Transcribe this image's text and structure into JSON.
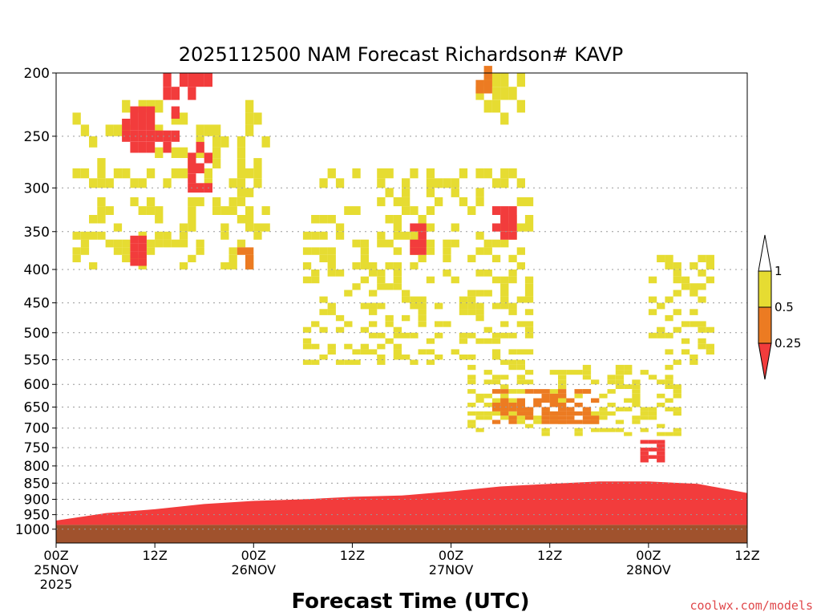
{
  "chart_data": {
    "type": "heatmap",
    "title": "2025112500 NAM Forecast Richardson# KAVP",
    "xlabel": "Forecast Time (UTC)",
    "ylabel": "",
    "x_axis": {
      "unit": "forecast hour",
      "range": [
        0,
        84
      ]
    },
    "y_axis": {
      "unit": "hPa",
      "range": [
        1050,
        200
      ],
      "inverted": true
    },
    "y_ticks": [
      200,
      250,
      300,
      350,
      400,
      450,
      500,
      550,
      600,
      650,
      700,
      750,
      800,
      850,
      900,
      950,
      1000
    ],
    "x_ticks": [
      {
        "hour": 0,
        "lines": [
          "00Z",
          "25NOV",
          "2025"
        ]
      },
      {
        "hour": 12,
        "lines": [
          "12Z"
        ]
      },
      {
        "hour": 24,
        "lines": [
          "00Z",
          "26NOV"
        ]
      },
      {
        "hour": 36,
        "lines": [
          "12Z"
        ]
      },
      {
        "hour": 48,
        "lines": [
          "00Z",
          "27NOV"
        ]
      },
      {
        "hour": 60,
        "lines": [
          "12Z"
        ]
      },
      {
        "hour": 72,
        "lines": [
          "00Z",
          "28NOV"
        ]
      },
      {
        "hour": 84,
        "lines": [
          "12Z"
        ]
      }
    ],
    "color_scale": {
      "thresholds": [
        0.25,
        0.5,
        1
      ],
      "bins": [
        {
          "label": "< 0.25",
          "color": "#f23c3c"
        },
        {
          "label": "0.25 - 0.5",
          "color": "#ec7b22"
        },
        {
          "label": "0.5 - 1",
          "color": "#e6dc32"
        },
        {
          "label": "> 1",
          "color": "#ffffff"
        }
      ],
      "legend_labels": [
        "1",
        "0.5",
        "0.25"
      ]
    },
    "ground_color": "#a0522d",
    "surface_pressure_hPa": 985,
    "boundary_layer_top_hPa": [
      {
        "hour": 0,
        "p": 970
      },
      {
        "hour": 6,
        "p": 945
      },
      {
        "hour": 12,
        "p": 932
      },
      {
        "hour": 18,
        "p": 915
      },
      {
        "hour": 24,
        "p": 905
      },
      {
        "hour": 30,
        "p": 900
      },
      {
        "hour": 36,
        "p": 892
      },
      {
        "hour": 42,
        "p": 888
      },
      {
        "hour": 48,
        "p": 875
      },
      {
        "hour": 54,
        "p": 860
      },
      {
        "hour": 60,
        "p": 852
      },
      {
        "hour": 66,
        "p": 845
      },
      {
        "hour": 72,
        "p": 845
      },
      {
        "hour": 78,
        "p": 852
      },
      {
        "hour": 84,
        "p": 880
      }
    ],
    "unstable_regions": [
      {
        "hours": [
          13,
          19
        ],
        "p_range": [
          200,
          215
        ],
        "category": "< 0.25"
      },
      {
        "hours": [
          8,
          15
        ],
        "p_range": [
          225,
          265
        ],
        "category": "< 0.25"
      },
      {
        "hours": [
          16,
          19
        ],
        "p_range": [
          255,
          300
        ],
        "category": "< 0.25"
      },
      {
        "hours": [
          9,
          11
        ],
        "p_range": [
          355,
          390
        ],
        "category": "< 0.25"
      },
      {
        "hours": [
          53,
          56
        ],
        "p_range": [
          320,
          360
        ],
        "category": "< 0.25"
      },
      {
        "hours": [
          43,
          45
        ],
        "p_range": [
          340,
          380
        ],
        "category": "< 0.25"
      },
      {
        "hours": [
          71,
          74
        ],
        "p_range": [
          730,
          790
        ],
        "category": "< 0.25"
      },
      {
        "hours": [
          51,
          53
        ],
        "p_range": [
          195,
          215
        ],
        "category": "0.25 - 0.5"
      },
      {
        "hours": [
          21,
          24
        ],
        "p_range": [
          370,
          410
        ],
        "category": "0.25 - 0.5"
      },
      {
        "hours": [
          53,
          66
        ],
        "p_range": [
          610,
          690
        ],
        "category": "0.25 - 0.5"
      },
      {
        "hours": [
          2,
          26
        ],
        "p_range": [
          220,
          400
        ],
        "category": "0.5 - 1"
      },
      {
        "hours": [
          49,
          57
        ],
        "p_range": [
          200,
          240
        ],
        "category": "0.5 - 1"
      },
      {
        "hours": [
          30,
          58
        ],
        "p_range": [
          280,
          560
        ],
        "category": "0.5 - 1"
      },
      {
        "hours": [
          50,
          76
        ],
        "p_range": [
          560,
          720
        ],
        "category": "0.5 - 1"
      },
      {
        "hours": [
          72,
          80
        ],
        "p_range": [
          380,
          560
        ],
        "category": "0.5 - 1"
      }
    ]
  },
  "credit": "coolwx.com/models"
}
